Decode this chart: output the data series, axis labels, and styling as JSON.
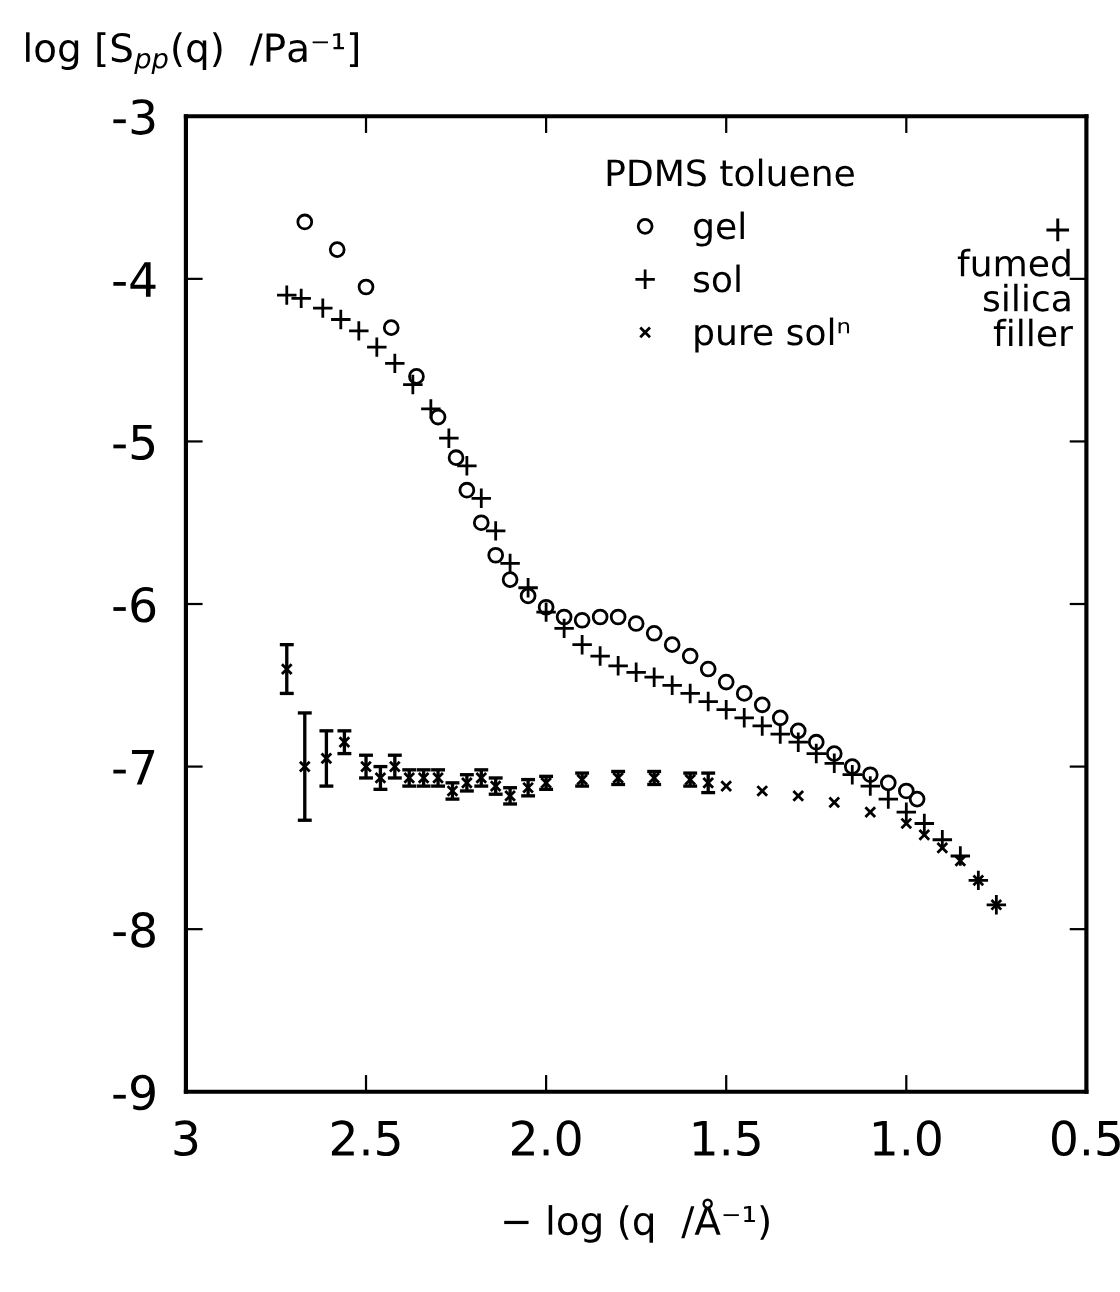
{
  "chart_data": {
    "type": "scatter",
    "xlabel": "− log (q  /Å⁻¹)",
    "ylabel": "log [S$_{pp}$(q)  /Pa⁻¹]",
    "legend_title": "PDMS toluene",
    "legend": "top right",
    "annotations": [
      "+ fumed silica filler"
    ],
    "xlim": [
      3,
      0.5
    ],
    "ylim": [
      -9,
      -3
    ],
    "xticks": [
      3,
      2.5,
      {
        "value": 2.0,
        "label": "2.0"
      },
      1.5,
      {
        "value": 1.0,
        "label": "1.0"
      },
      0.5
    ],
    "yticks": [
      -3,
      -4,
      -5,
      -6,
      -7,
      -8,
      -9
    ],
    "grid": false,
    "series": [
      {
        "name": "gel",
        "color": "#000000",
        "marker": "circle",
        "x": [
          2.67,
          2.58,
          2.5,
          2.43,
          2.36,
          2.3,
          2.25,
          2.22,
          2.18,
          2.14,
          2.1,
          2.05,
          2.0,
          1.95,
          1.9,
          1.85,
          1.8,
          1.75,
          1.7,
          1.65,
          1.6,
          1.55,
          1.5,
          1.45,
          1.4,
          1.35,
          1.3,
          1.25,
          1.2,
          1.15,
          1.1,
          1.05,
          1.0,
          0.97
        ],
        "values": [
          -3.65,
          -3.82,
          -4.05,
          -4.3,
          -4.6,
          -4.85,
          -5.1,
          -5.3,
          -5.5,
          -5.7,
          -5.85,
          -5.95,
          -6.02,
          -6.08,
          -6.1,
          -6.08,
          -6.08,
          -6.12,
          -6.18,
          -6.25,
          -6.32,
          -6.4,
          -6.48,
          -6.55,
          -6.62,
          -6.7,
          -6.78,
          -6.85,
          -6.92,
          -7.0,
          -7.05,
          -7.1,
          -7.15,
          -7.2
        ]
      },
      {
        "name": "sol",
        "color": "#000000",
        "marker": "plus",
        "x": [
          2.72,
          2.68,
          2.62,
          2.57,
          2.52,
          2.47,
          2.42,
          2.37,
          2.32,
          2.27,
          2.22,
          2.18,
          2.14,
          2.1,
          2.05,
          2.0,
          1.95,
          1.9,
          1.85,
          1.8,
          1.75,
          1.7,
          1.65,
          1.6,
          1.55,
          1.5,
          1.45,
          1.4,
          1.35,
          1.3,
          1.25,
          1.2,
          1.15,
          1.1,
          1.05,
          1.0,
          0.95,
          0.9,
          0.85,
          0.8,
          0.75
        ],
        "values": [
          -4.1,
          -4.12,
          -4.18,
          -4.25,
          -4.32,
          -4.42,
          -4.52,
          -4.65,
          -4.8,
          -4.98,
          -5.15,
          -5.35,
          -5.55,
          -5.75,
          -5.9,
          -6.05,
          -6.15,
          -6.25,
          -6.32,
          -6.38,
          -6.42,
          -6.45,
          -6.5,
          -6.55,
          -6.6,
          -6.65,
          -6.7,
          -6.75,
          -6.8,
          -6.85,
          -6.92,
          -6.98,
          -7.05,
          -7.12,
          -7.2,
          -7.28,
          -7.35,
          -7.45,
          -7.55,
          -7.7,
          -7.85
        ]
      },
      {
        "name": "pure solⁿ",
        "color": "#000000",
        "marker": "x",
        "x": [
          2.72,
          2.67,
          2.61,
          2.56,
          2.5,
          2.46,
          2.42,
          2.38,
          2.34,
          2.3,
          2.26,
          2.22,
          2.18,
          2.14,
          2.1,
          2.05,
          2.0,
          1.9,
          1.8,
          1.7,
          1.6,
          1.55,
          1.5,
          1.4,
          1.3,
          1.2,
          1.1,
          1.0,
          0.95,
          0.9,
          0.85,
          0.8,
          0.75
        ],
        "values": [
          -6.4,
          -7.0,
          -6.95,
          -6.85,
          -7.0,
          -7.07,
          -7.0,
          -7.07,
          -7.07,
          -7.07,
          -7.15,
          -7.1,
          -7.07,
          -7.12,
          -7.18,
          -7.13,
          -7.1,
          -7.08,
          -7.07,
          -7.07,
          -7.08,
          -7.1,
          -7.12,
          -7.15,
          -7.18,
          -7.22,
          -7.28,
          -7.35,
          -7.42,
          -7.5,
          -7.58,
          -7.7,
          -7.85
        ],
        "errors": [
          0.15,
          0.33,
          0.17,
          0.07,
          0.07,
          0.07,
          0.07,
          0.05,
          0.05,
          0.05,
          0.05,
          0.05,
          0.05,
          0.05,
          0.05,
          0.05,
          0.04,
          0.04,
          0.04,
          0.04,
          0.04,
          0.06,
          null,
          null,
          null,
          null,
          null,
          null,
          null,
          null,
          null,
          null,
          null
        ]
      }
    ]
  }
}
